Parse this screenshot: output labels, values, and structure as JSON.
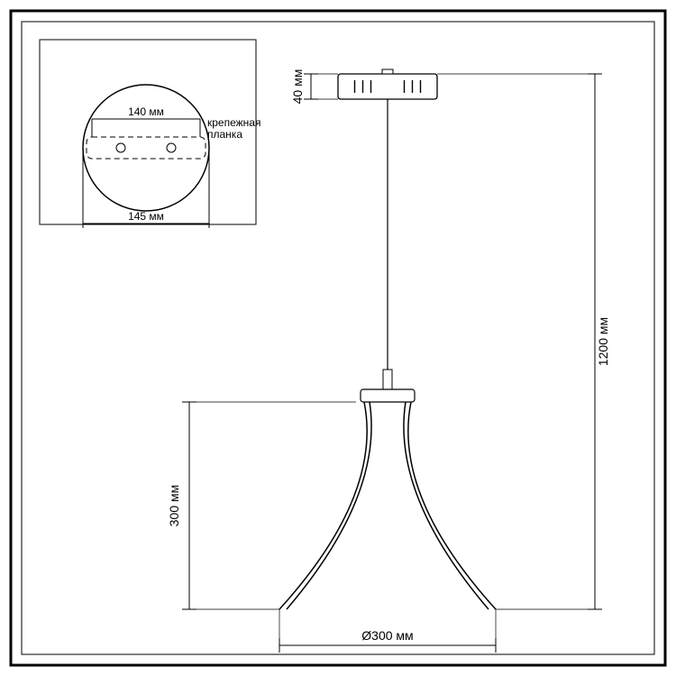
{
  "frame": {
    "outer_stroke": "#000000",
    "outer_stroke_w": 3,
    "inner_stroke": "#000000",
    "inner_stroke_w": 1,
    "bg": "#ffffff"
  },
  "inset": {
    "box_stroke": "#000000",
    "box_stroke_w": 1,
    "circle_r": 70,
    "circle_stroke_w": 1.5,
    "hole_r": 5,
    "dim_bracket": "140 мм",
    "label": "крепежная\nпланка",
    "dim_diameter": "145 мм",
    "dash": "6,4",
    "stroke": "#000000",
    "font_size": 12
  },
  "lamp": {
    "canopy_w": 110,
    "canopy_h": 28,
    "canopy_stroke": "#000000",
    "canopy_slot_count": 3,
    "cord_stroke": "#000000",
    "cord_w": 1.2,
    "ferrule_w": 10,
    "ferrule_h": 22,
    "junction_w": 60,
    "junction_h": 14,
    "shade_stroke": "#000000",
    "shade_w": 1.5
  },
  "dims": {
    "canopy_h": "40 мм",
    "total_h": "1200 мм",
    "shade_h": "300 мм",
    "shade_dia": "Ø300 мм",
    "stroke": "#000000",
    "tick": 8,
    "font_size": 14
  }
}
